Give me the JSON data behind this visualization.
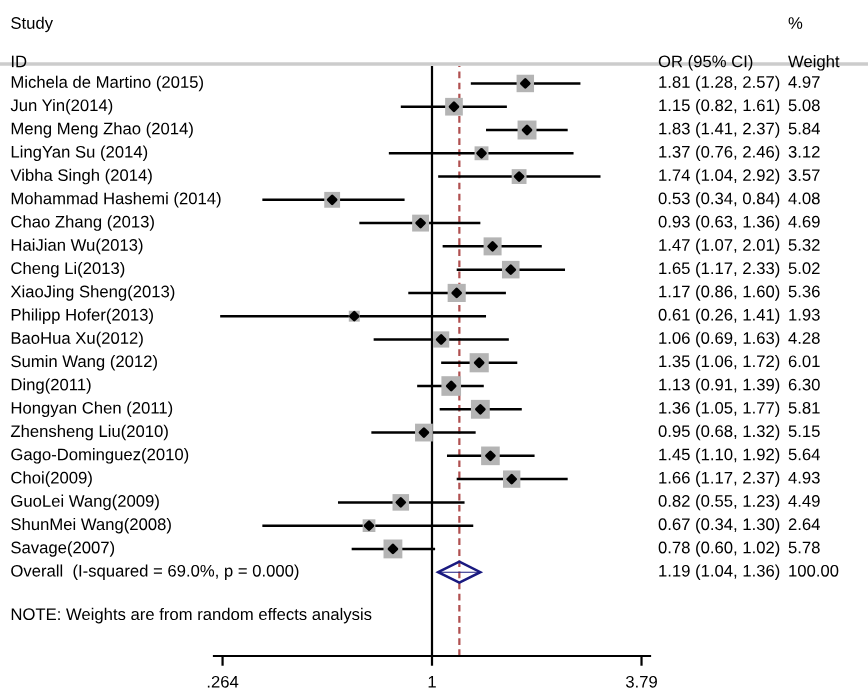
{
  "chart_data": {
    "type": "bubble",
    "orientation": "horizontal",
    "log": "x",
    "categories": [
      "Michela de Martino (2015)",
      "Jun Yin(2014)",
      "Meng Meng Zhao (2014)",
      "LingYan Su (2014)",
      "Vibha Singh (2014)",
      "Mohammad Hashemi (2014)",
      "Chao Zhang (2013)",
      "HaiJian Wu(2013)",
      "Cheng Li(2013)",
      "XiaoJing Sheng(2013)",
      "Philipp Hofer(2013)",
      "BaoHua Xu(2012)",
      "Sumin Wang (2012)",
      "Ding(2011)",
      "Hongyan Chen (2011)",
      "Zhensheng Liu(2010)",
      "Gago-Dominguez(2010)",
      "Choi(2009)",
      "GuoLei Wang(2009)",
      "ShunMei Wang(2008)",
      "Savage(2007)",
      "Overall  (I-squared = 69.0%, p = 0.000)"
    ],
    "series": [
      {
        "marker": "square",
        "color": "#b4b4b4",
        "values": [
          1.81,
          1.15,
          1.83,
          1.37,
          1.74,
          0.53,
          0.93,
          1.47,
          1.65,
          1.17,
          0.61,
          1.06,
          1.35,
          1.13,
          1.36,
          0.95,
          1.45,
          1.66,
          0.82,
          0.67,
          0.78,
          null
        ],
        "errors": [
          [
            1.28,
            2.57
          ],
          [
            0.82,
            1.61
          ],
          [
            1.41,
            2.37
          ],
          [
            0.76,
            2.46
          ],
          [
            1.04,
            2.92
          ],
          [
            0.34,
            0.84
          ],
          [
            0.63,
            1.36
          ],
          [
            1.07,
            2.01
          ],
          [
            1.17,
            2.33
          ],
          [
            0.86,
            1.6
          ],
          [
            0.26,
            1.41
          ],
          [
            0.69,
            1.63
          ],
          [
            1.06,
            1.72
          ],
          [
            0.91,
            1.39
          ],
          [
            1.05,
            1.77
          ],
          [
            0.68,
            1.32
          ],
          [
            1.1,
            1.92
          ],
          [
            1.17,
            2.37
          ],
          [
            0.55,
            1.23
          ],
          [
            0.34,
            1.3
          ],
          [
            0.6,
            1.02
          ],
          null
        ],
        "sizes": [
          0.79,
          0.81,
          0.93,
          0.5,
          0.57,
          0.65,
          0.74,
          0.84,
          0.8,
          0.85,
          0.31,
          0.68,
          0.95,
          1,
          0.92,
          0.82,
          0.9,
          0.78,
          0.71,
          0.42,
          0.92,
          null
        ]
      },
      {
        "marker": "diamond",
        "color": "#1a1a80",
        "values": [
          null,
          null,
          null,
          null,
          null,
          null,
          null,
          null,
          null,
          null,
          null,
          null,
          null,
          null,
          null,
          null,
          null,
          null,
          null,
          null,
          null,
          1.19
        ],
        "errors": [
          null,
          null,
          null,
          null,
          null,
          null,
          null,
          null,
          null,
          null,
          null,
          null,
          null,
          null,
          null,
          null,
          null,
          null,
          null,
          null,
          null,
          [
            1.04,
            1.36
          ]
        ]
      }
    ],
    "xlim": [
      0.25,
      4.0
    ],
    "xticks": [
      {
        "value": 0.264,
        "label": ".264"
      },
      1,
      3.79
    ],
    "ref_lines": [
      {
        "axis": "x",
        "value": 1,
        "color": "#000000",
        "line_style": "solid"
      },
      {
        "axis": "x",
        "value": 1.19,
        "color": "#b05050",
        "line_style": "dashed"
      }
    ],
    "annotations": [
      "Study",
      "ID",
      "OR (95% CI)",
      "%",
      "Weight",
      "NOTE: Weights are from random effects analysis",
      "1.81 (1.28, 2.57)",
      "1.15 (0.82, 1.61)",
      "1.83 (1.41, 2.37)",
      "1.37 (0.76, 2.46)",
      "1.74 (1.04, 2.92)",
      "0.53 (0.34, 0.84)",
      "0.93 (0.63, 1.36)",
      "1.47 (1.07, 2.01)",
      "1.65 (1.17, 2.33)",
      "1.17 (0.86, 1.60)",
      "0.61 (0.26, 1.41)",
      "1.06 (0.69, 1.63)",
      "1.35 (1.06, 1.72)",
      "1.13 (0.91, 1.39)",
      "1.36 (1.05, 1.77)",
      "0.95 (0.68, 1.32)",
      "1.45 (1.10, 1.92)",
      "1.66 (1.17, 2.37)",
      "0.82 (0.55, 1.23)",
      "0.67 (0.34, 1.30)",
      "0.78 (0.60, 1.02)",
      "1.19 (1.04, 1.36)",
      "4.97",
      "5.08",
      "5.84",
      "3.12",
      "3.57",
      "4.08",
      "4.69",
      "5.32",
      "5.02",
      "5.36",
      "1.93",
      "4.28",
      "6.01",
      "6.30",
      "5.81",
      "5.15",
      "5.64",
      "4.93",
      "4.49",
      "2.64",
      "5.78",
      "100.00"
    ],
    "grid": false,
    "legend": false
  }
}
